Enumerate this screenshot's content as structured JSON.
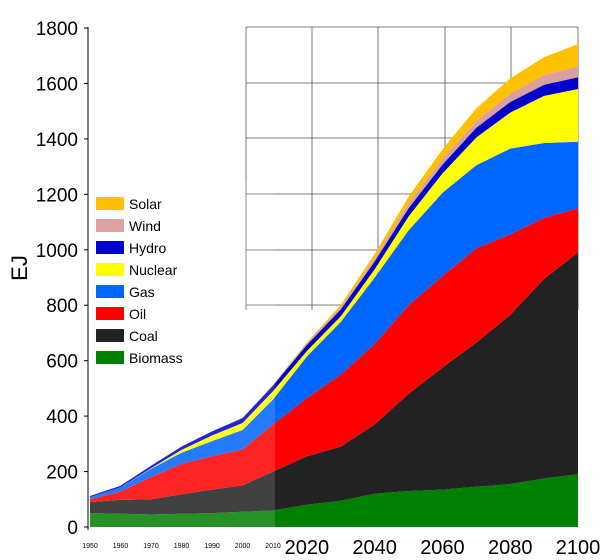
{
  "chart_data": {
    "type": "area",
    "stacked": true,
    "title": "",
    "xlabel": "",
    "ylabel": "EJ",
    "ylim": [
      0,
      1800
    ],
    "xlim": [
      1950,
      2100
    ],
    "yticks": [
      "0",
      "200",
      "400",
      "600",
      "800",
      "1000",
      "1200",
      "1400",
      "1600",
      "1800"
    ],
    "xticks_major": [
      "2020",
      "2040",
      "2060",
      "2080",
      "2100"
    ],
    "xticks_minor": [
      "1950",
      "1960",
      "1970",
      "1980",
      "1990",
      "2000",
      "2010"
    ],
    "legend_position": "left",
    "grid": "upper-right projection panel",
    "x": [
      1950,
      1960,
      1970,
      1980,
      1990,
      2000,
      2010,
      2020,
      2030,
      2040,
      2050,
      2060,
      2070,
      2080,
      2090,
      2100
    ],
    "series": [
      {
        "name": "Biomass",
        "color": "#008000",
        "values": [
          50,
          48,
          45,
          48,
          50,
          55,
          60,
          80,
          95,
          120,
          130,
          135,
          145,
          155,
          175,
          190
        ]
      },
      {
        "name": "Coal",
        "color": "#222222",
        "values": [
          40,
          50,
          55,
          70,
          85,
          95,
          140,
          175,
          195,
          250,
          350,
          440,
          520,
          610,
          720,
          800
        ]
      },
      {
        "name": "Oil",
        "color": "#ff0000",
        "values": [
          10,
          30,
          80,
          110,
          120,
          130,
          170,
          210,
          260,
          290,
          320,
          330,
          340,
          290,
          220,
          160
        ]
      },
      {
        "name": "Gas",
        "color": "#0066ff",
        "values": [
          8,
          15,
          30,
          40,
          55,
          70,
          90,
          150,
          190,
          240,
          270,
          300,
          300,
          310,
          270,
          240
        ]
      },
      {
        "name": "Nuclear",
        "color": "#ffff00",
        "values": [
          0,
          0,
          2,
          10,
          20,
          25,
          30,
          20,
          20,
          30,
          50,
          70,
          100,
          130,
          170,
          190
        ]
      },
      {
        "name": "Hydro",
        "color": "#0000cc",
        "values": [
          4,
          6,
          9,
          12,
          15,
          18,
          20,
          22,
          25,
          28,
          30,
          32,
          35,
          38,
          40,
          42
        ]
      },
      {
        "name": "Wind",
        "color": "#dda0a0",
        "values": [
          0,
          0,
          0,
          0,
          0,
          1,
          3,
          5,
          8,
          12,
          16,
          20,
          25,
          30,
          35,
          40
        ]
      },
      {
        "name": "Solar",
        "color": "#ffc000",
        "values": [
          0,
          0,
          0,
          0,
          0,
          0,
          1,
          4,
          8,
          15,
          25,
          35,
          45,
          55,
          65,
          80
        ]
      }
    ]
  }
}
